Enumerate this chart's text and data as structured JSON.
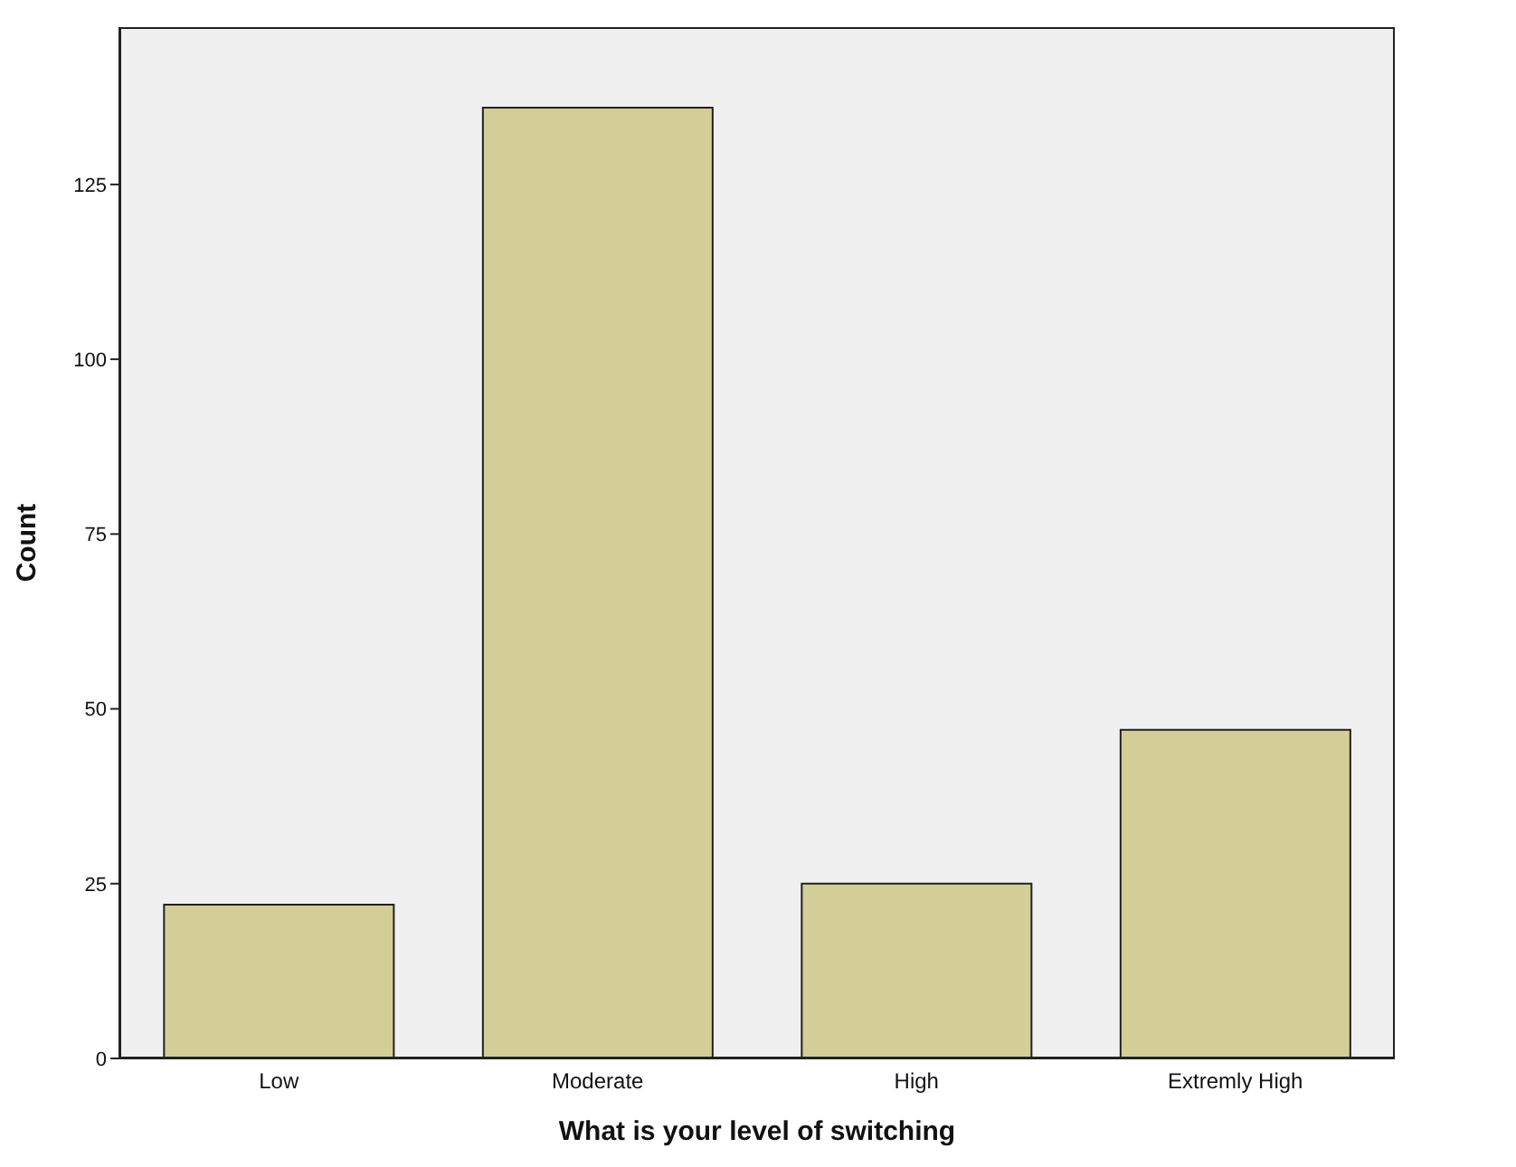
{
  "chart_data": {
    "type": "bar",
    "xlabel": "What is your level of switching",
    "ylabel": "Count",
    "categories": [
      "Low",
      "Moderate",
      "High",
      "Extremly High"
    ],
    "values": [
      22,
      136,
      25,
      47
    ],
    "color": "#d3ce98",
    "ylim": [
      0,
      147.5
    ],
    "yticks": [
      0,
      25,
      50,
      75,
      100,
      125
    ],
    "grid": false,
    "legend": false
  }
}
